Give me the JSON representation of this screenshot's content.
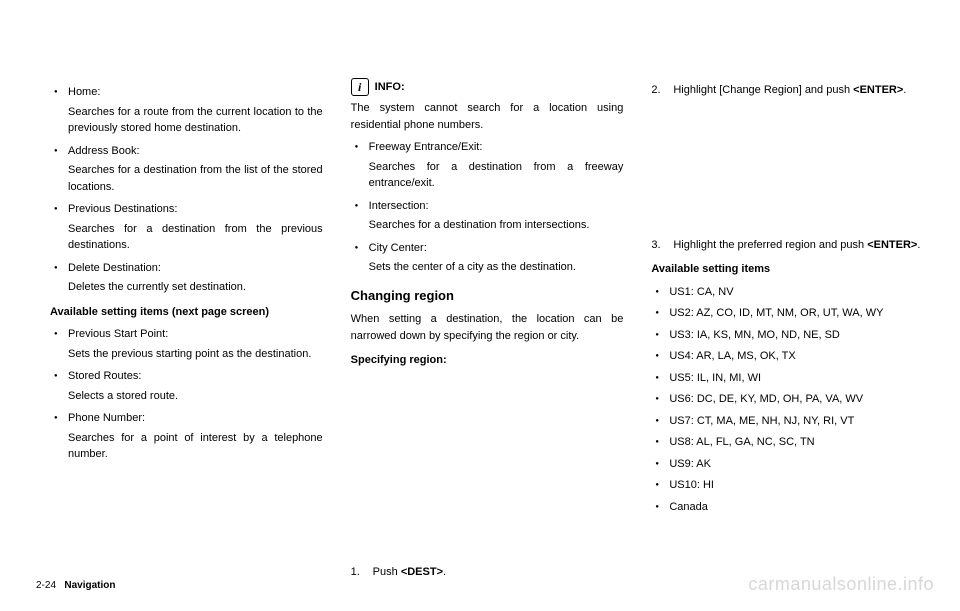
{
  "col1": {
    "items": [
      {
        "label": "Home:",
        "desc": "Searches for a route from the current location to the previously stored home destination."
      },
      {
        "label": "Address Book:",
        "desc": "Searches for a destination from the list of the stored locations."
      },
      {
        "label": "Previous Destinations:",
        "desc": "Searches for a destination from the previous destinations."
      },
      {
        "label": "Delete Destination:",
        "desc": "Deletes the currently set destination."
      }
    ],
    "subhead": "Available setting items (next page screen)",
    "items2": [
      {
        "label": "Previous Start Point:",
        "desc": "Sets the previous starting point as the destination."
      },
      {
        "label": "Stored Routes:",
        "desc": "Selects a stored route."
      },
      {
        "label": "Phone Number:",
        "desc": "Searches for a point of interest by a telephone number."
      }
    ]
  },
  "col2": {
    "info_label": "INFO:",
    "info_text": "The system cannot search for a location using residential phone numbers.",
    "items": [
      {
        "label": "Freeway Entrance/Exit:",
        "desc": "Searches for a destination from a freeway entrance/exit."
      },
      {
        "label": "Intersection:",
        "desc": "Searches for a destination from intersec­tions."
      },
      {
        "label": "City Center:",
        "desc": "Sets the center of a city as the destination."
      }
    ],
    "section_head": "Changing region",
    "section_text": "When setting a destination, the location can be narrowed down by specifying the region or city.",
    "spec_head": "Specifying region:",
    "step1_num": "1.",
    "step1_text_a": "Push ",
    "step1_text_b": "<DEST>",
    "step1_text_c": "."
  },
  "col3": {
    "step2_num": "2.",
    "step2_text_a": "Highlight [Change Region] and push ",
    "step2_text_b": "<ENTER>",
    "step2_text_c": ".",
    "step3_num": "3.",
    "step3_text_a": "Highlight the preferred region and push ",
    "step3_text_b": "<ENTER>",
    "step3_text_c": ".",
    "avail_head": "Available setting items",
    "regions": [
      "US1: CA, NV",
      "US2: AZ, CO, ID, MT, NM, OR, UT, WA, WY",
      "US3: IA, KS, MN, MO, ND, NE, SD",
      "US4: AR, LA, MS, OK, TX",
      "US5: IL, IN, MI, WI",
      "US6: DC, DE, KY, MD, OH, PA, VA, WV",
      "US7: CT, MA, ME, NH, NJ, NY, RI, VT",
      "US8: AL, FL, GA, NC, SC, TN",
      "US9: AK",
      "US10: HI",
      "Canada"
    ]
  },
  "footer": {
    "page": "2-24",
    "section": "Navigation"
  },
  "watermark": "carmanualsonline.info"
}
